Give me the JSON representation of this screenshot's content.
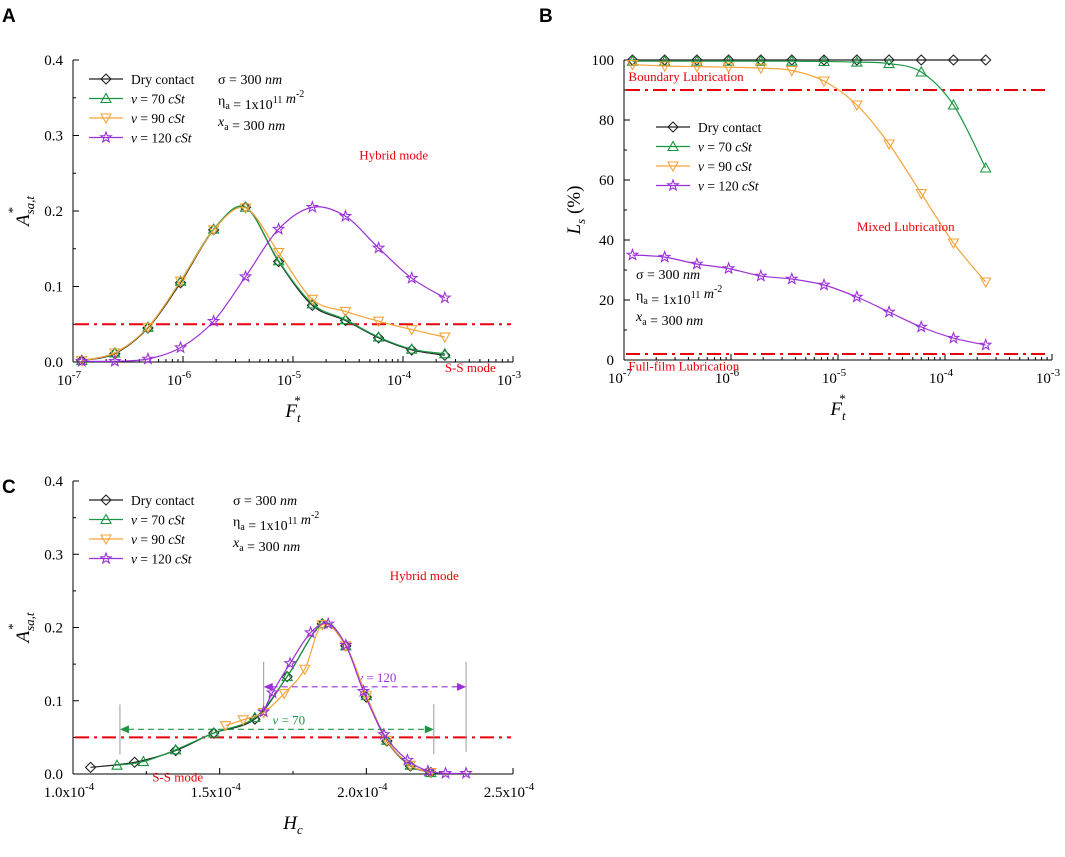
{
  "chart_data": [
    {
      "type": "line",
      "panel": "A",
      "x_scale": "log",
      "xlim": [
        1e-07,
        0.001
      ],
      "ylim": [
        0,
        0.4
      ],
      "yticks": [
        0.0,
        0.1,
        0.2,
        0.3,
        0.4
      ],
      "ytick_labels": [
        "0.0",
        "0.1",
        "0.2",
        "0.3",
        "0.4"
      ],
      "xtick_exps": [
        "-7",
        "-6",
        "-5",
        "-4",
        "-3"
      ],
      "xlabel": "F",
      "xlabel_sub": "t",
      "xlabel_sup": "*",
      "ylabel": "A",
      "ylabel_sub": "sa,t",
      "ylabel_sup": "*",
      "params": [
        {
          "pre": "σ = 300 ",
          "it": "nm",
          "sup": "",
          "post": ""
        },
        {
          "pre": "η",
          "sub": "a",
          "mid": " = 1x10",
          "sup": "11",
          "it": " m",
          "sup2": "-2"
        },
        {
          "pre": "",
          "itv": "x",
          "sub": "a",
          "mid": " = 300 ",
          "it": "nm"
        }
      ],
      "annotations": [
        {
          "text": "Hybrid mode",
          "color": "#e8000b",
          "x": 4e-05,
          "y": 0.268
        },
        {
          "text": "S-S mode",
          "color": "#e8000b",
          "x": 0.00024,
          "y": -0.013
        }
      ],
      "threshold": 0.05,
      "series": [
        {
          "name": "Dry contact",
          "color": "#222222",
          "marker": "diamond",
          "x": [
            1.2e-07,
            2.4e-07,
            4.8e-07,
            9.5e-07,
            1.9e-06,
            3.7e-06,
            7.4e-06,
            1.5e-05,
            3e-05,
            6e-05,
            0.00012,
            0.00024
          ],
          "y": [
            0.002,
            0.011,
            0.045,
            0.105,
            0.175,
            0.205,
            0.133,
            0.075,
            0.055,
            0.032,
            0.016,
            0.009
          ]
        },
        {
          "name": "v = 70 cSt",
          "color": "#1a9641",
          "marker": "triangle-up",
          "x": [
            1.2e-07,
            2.4e-07,
            4.8e-07,
            9.5e-07,
            1.9e-06,
            3.7e-06,
            7.4e-06,
            1.5e-05,
            3e-05,
            6e-05,
            0.00012,
            0.00024
          ],
          "y": [
            0.002,
            0.012,
            0.046,
            0.107,
            0.176,
            0.205,
            0.134,
            0.077,
            0.056,
            0.033,
            0.017,
            0.011
          ]
        },
        {
          "name": "v = 90 cSt",
          "color": "#f5a33a",
          "marker": "triangle-down",
          "x": [
            1.2e-07,
            2.4e-07,
            4.8e-07,
            9.5e-07,
            1.9e-06,
            3.7e-06,
            7.4e-06,
            1.5e-05,
            3e-05,
            6e-05,
            0.00012,
            0.00024
          ],
          "y": [
            0.002,
            0.012,
            0.046,
            0.107,
            0.175,
            0.204,
            0.145,
            0.083,
            0.067,
            0.054,
            0.043,
            0.033
          ]
        },
        {
          "name": "v = 120 cSt",
          "color": "#9b30d9",
          "marker": "star",
          "x": [
            1.2e-07,
            2.4e-07,
            4.8e-07,
            9.5e-07,
            1.9e-06,
            3.7e-06,
            7.4e-06,
            1.5e-05,
            3e-05,
            6e-05,
            0.00012,
            0.00024
          ],
          "y": [
            0.001,
            0.001,
            0.004,
            0.019,
            0.054,
            0.113,
            0.176,
            0.205,
            0.193,
            0.151,
            0.111,
            0.085
          ]
        }
      ]
    },
    {
      "type": "line",
      "panel": "B",
      "x_scale": "log",
      "xlim": [
        1e-07,
        0.001
      ],
      "ylim": [
        0,
        100
      ],
      "yticks": [
        0,
        20,
        40,
        60,
        80,
        100
      ],
      "ytick_labels": [
        "0",
        "20",
        "40",
        "60",
        "80",
        "100"
      ],
      "xtick_exps": [
        "-7",
        "-6",
        "-5",
        "-4",
        "-3"
      ],
      "xlabel": "F",
      "xlabel_sub": "t",
      "xlabel_sup": "*",
      "ylabel": "L",
      "ylabel_sub": "s",
      "ylabel_suffix": " (%)",
      "params": [
        {
          "pre": "σ = 300 ",
          "it": "nm",
          "sup": "",
          "post": ""
        },
        {
          "pre": "η",
          "sub": "a",
          "mid": " = 1x10",
          "sup": "11",
          "it": " m",
          "sup2": "-2"
        },
        {
          "pre": "",
          "itv": "x",
          "sub": "a",
          "mid": " = 300 ",
          "it": "nm"
        }
      ],
      "annotations": [
        {
          "text": "Boundary Lubrication",
          "color": "#e8000b",
          "x": 1.1e-07,
          "y": 93
        },
        {
          "text": "Mixed Lubrication",
          "color": "#e8000b",
          "x": 1.5e-05,
          "y": 43
        },
        {
          "text": "Full-film Lubrication",
          "color": "#e8000b",
          "x": 1.1e-07,
          "y": -3.5
        }
      ],
      "thresholds": [
        90,
        2
      ],
      "series": [
        {
          "name": "Dry contact",
          "color": "#222222",
          "marker": "diamond",
          "x": [
            1.2e-07,
            2.4e-07,
            4.8e-07,
            9.5e-07,
            1.9e-06,
            3.7e-06,
            7.4e-06,
            1.5e-05,
            3e-05,
            6e-05,
            0.00012,
            0.00024
          ],
          "y": [
            100,
            100,
            100,
            100,
            100,
            100,
            100,
            100,
            100,
            100,
            100,
            100
          ]
        },
        {
          "name": "v = 70 cSt",
          "color": "#1a9641",
          "marker": "triangle-up",
          "x": [
            1.2e-07,
            2.4e-07,
            4.8e-07,
            9.5e-07,
            1.9e-06,
            3.7e-06,
            7.4e-06,
            1.5e-05,
            3e-05,
            6e-05,
            0.00012,
            0.00024
          ],
          "y": [
            99.6,
            99.6,
            99.6,
            99.6,
            99.6,
            99.6,
            99.5,
            99.3,
            98.8,
            96,
            85,
            64
          ]
        },
        {
          "name": "v = 90 cSt",
          "color": "#f5a33a",
          "marker": "triangle-down",
          "x": [
            1.2e-07,
            2.4e-07,
            4.8e-07,
            9.5e-07,
            1.9e-06,
            3.7e-06,
            7.4e-06,
            1.5e-05,
            3e-05,
            6e-05,
            0.00012,
            0.00024
          ],
          "y": [
            98.5,
            98,
            97.8,
            97.6,
            97.3,
            96.5,
            93,
            85,
            72,
            55.5,
            39,
            26
          ]
        },
        {
          "name": "v = 120 cSt",
          "color": "#9b30d9",
          "marker": "star",
          "x": [
            1.2e-07,
            2.4e-07,
            4.8e-07,
            9.5e-07,
            1.9e-06,
            3.7e-06,
            7.4e-06,
            1.5e-05,
            3e-05,
            6e-05,
            0.00012,
            0.00024
          ],
          "y": [
            35,
            34.3,
            32,
            30.5,
            28,
            27,
            25,
            21,
            16,
            11,
            7.3,
            5
          ]
        }
      ]
    },
    {
      "type": "line",
      "panel": "C",
      "x_scale": "linear",
      "xlim": [
        0.0001,
        0.00025
      ],
      "ylim": [
        0,
        0.4
      ],
      "yticks": [
        0.0,
        0.1,
        0.2,
        0.3,
        0.4
      ],
      "ytick_labels": [
        "0.0",
        "0.1",
        "0.2",
        "0.3",
        "0.4"
      ],
      "xticks": [
        0.0001,
        0.00015,
        0.0002,
        0.00025
      ],
      "xtick_mant": [
        "1.0",
        "1.5",
        "2.0",
        "2.5"
      ],
      "xtick_exp": "-4",
      "xlabel": "H",
      "xlabel_sub": "c",
      "ylabel": "A",
      "ylabel_sub": "sa,t",
      "ylabel_sup": "*",
      "params": [
        {
          "pre": "σ = 300 ",
          "it": "nm",
          "sup": "",
          "post": ""
        },
        {
          "pre": "η",
          "sub": "a",
          "mid": " = 1x10",
          "sup": "11",
          "it": " m",
          "sup2": "-2"
        },
        {
          "pre": "",
          "itv": "x",
          "sub": "a",
          "mid": " = 300 ",
          "it": "nm"
        }
      ],
      "annotations": [
        {
          "text": "Hybrid mode",
          "color": "#e8000b",
          "x": 0.000208,
          "y": 0.265
        },
        {
          "text": "S-S mode",
          "color": "#e8000b",
          "x": 0.000127,
          "y": -0.01
        }
      ],
      "threshold": 0.05,
      "ranges": [
        {
          "label": "v = 70",
          "color": "#1a9641",
          "x0": 0.000116,
          "x1": 0.000223,
          "y": 0.061
        },
        {
          "label": "v = 120",
          "color": "#9b30d9",
          "x0": 0.000165,
          "x1": 0.000234,
          "y": 0.119
        }
      ],
      "series": [
        {
          "name": "Dry contact",
          "color": "#222222",
          "marker": "diamond",
          "x": [
            0.000106,
            0.000121,
            0.000135,
            0.000148,
            0.000162,
            0.000173,
            0.000185,
            0.000193,
            0.0002,
            0.000207,
            0.000215,
            0.000222
          ],
          "y": [
            0.009,
            0.016,
            0.032,
            0.056,
            0.075,
            0.133,
            0.205,
            0.175,
            0.105,
            0.045,
            0.011,
            0.002
          ]
        },
        {
          "name": "v = 70 cSt",
          "color": "#1a9641",
          "marker": "triangle-up",
          "x": [
            0.000115,
            0.000124,
            0.000135,
            0.000148,
            0.000162,
            0.000173,
            0.000185,
            0.000193,
            0.0002,
            0.000207,
            0.000215,
            0.000222
          ],
          "y": [
            0.012,
            0.017,
            0.033,
            0.056,
            0.077,
            0.133,
            0.205,
            0.175,
            0.107,
            0.046,
            0.012,
            0.002
          ]
        },
        {
          "name": "v = 90 cSt",
          "color": "#f5a33a",
          "marker": "triangle-down",
          "x": [
            0.000152,
            0.000158,
            0.000165,
            0.000172,
            0.000179,
            0.000185,
            0.000193,
            0.0002,
            0.000207,
            0.000215,
            0.000222
          ],
          "y": [
            0.066,
            0.074,
            0.084,
            0.11,
            0.143,
            0.204,
            0.175,
            0.107,
            0.046,
            0.012,
            0.002
          ]
        },
        {
          "name": "v = 120 cSt",
          "color": "#9b30d9",
          "marker": "star",
          "x": [
            0.000165,
            0.000168,
            0.000174,
            0.000181,
            0.000187,
            0.000193,
            0.000199,
            0.000206,
            0.000214,
            0.000221,
            0.000227,
            0.000234
          ],
          "y": [
            0.085,
            0.111,
            0.151,
            0.193,
            0.205,
            0.176,
            0.113,
            0.054,
            0.019,
            0.004,
            0.001,
            0.001
          ]
        }
      ]
    }
  ],
  "panels": [
    {
      "letter": "A"
    },
    {
      "letter": "B"
    },
    {
      "letter": "C"
    }
  ],
  "colors": {
    "threshold": "#e8000b",
    "axis": "#000000"
  }
}
